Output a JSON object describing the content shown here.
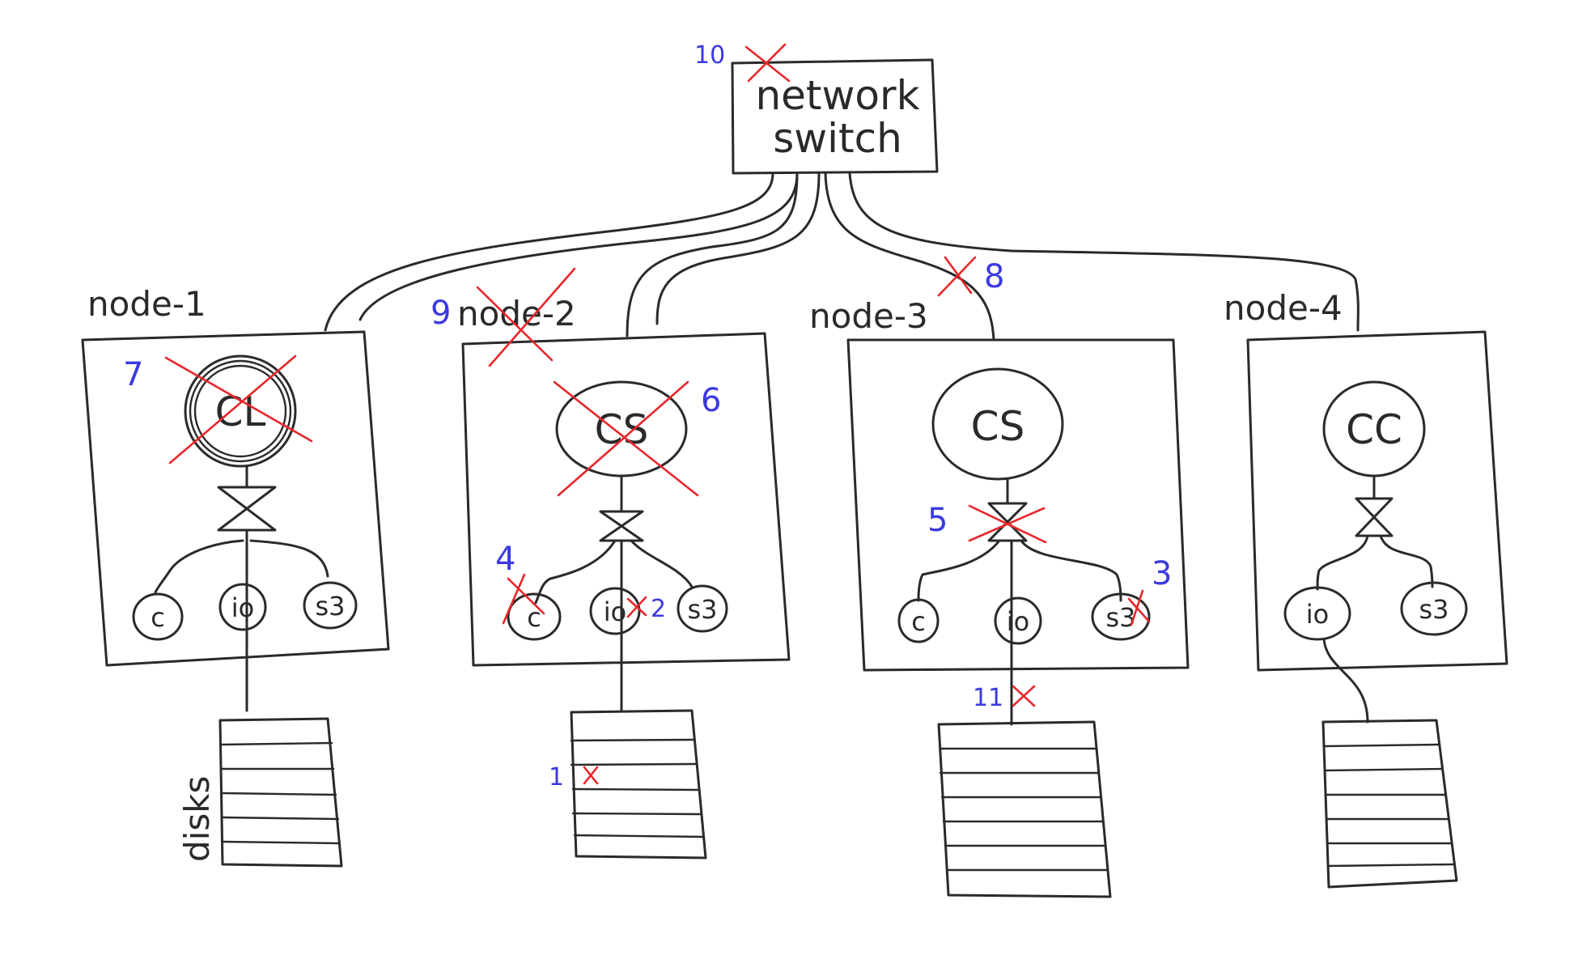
{
  "switch": {
    "line1": "network",
    "line2": "switch"
  },
  "nodes": [
    {
      "label": "node-1",
      "service": "CL",
      "ports": [
        "c",
        "io",
        "s3"
      ]
    },
    {
      "label": "node-2",
      "service": "CS",
      "ports": [
        "c",
        "io",
        "s3"
      ]
    },
    {
      "label": "node-3",
      "service": "CS",
      "ports": [
        "c",
        "io",
        "s3"
      ]
    },
    {
      "label": "node-4",
      "service": "CC",
      "ports": [
        "io",
        "s3"
      ]
    }
  ],
  "disks_label": "disks",
  "failures": [
    "1",
    "2",
    "3",
    "4",
    "5",
    "6",
    "7",
    "8",
    "9",
    "10",
    "11"
  ],
  "colors": {
    "ink": "#2a2a2a",
    "cross": "#e8262a",
    "number": "#3a3ae0"
  }
}
